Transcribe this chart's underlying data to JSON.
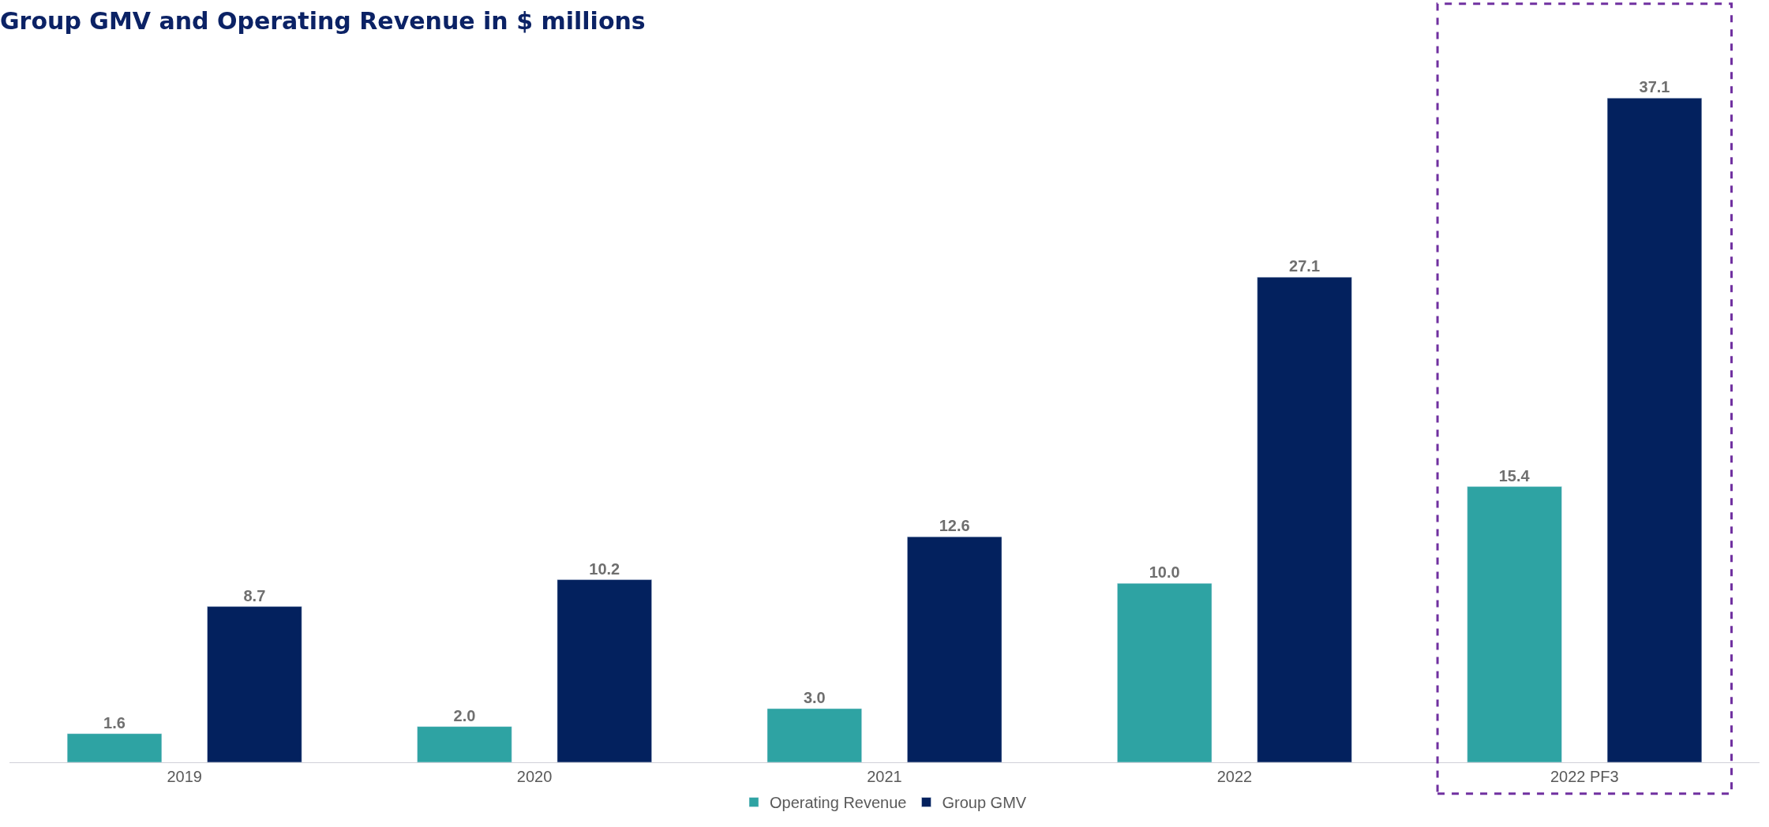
{
  "chart_data": {
    "type": "bar",
    "title": "Group GMV and Operating Revenue in $ millions",
    "categories": [
      "2019",
      "2020",
      "2021",
      "2022",
      "2022 PF3"
    ],
    "series": [
      {
        "name": "Operating Revenue",
        "color": "#2ea3a3",
        "values": [
          1.6,
          2.0,
          3.0,
          10.0,
          15.4
        ],
        "value_labels": [
          "1.6",
          "2.0",
          "3.0",
          "10.0",
          "15.4"
        ]
      },
      {
        "name": "Group GMV",
        "color": "#03215e",
        "values": [
          8.7,
          10.2,
          12.6,
          27.1,
          37.1
        ],
        "value_labels": [
          "8.7",
          "10.2",
          "12.6",
          "27.1",
          "37.1"
        ]
      }
    ],
    "legend": "bottom"
  }
}
